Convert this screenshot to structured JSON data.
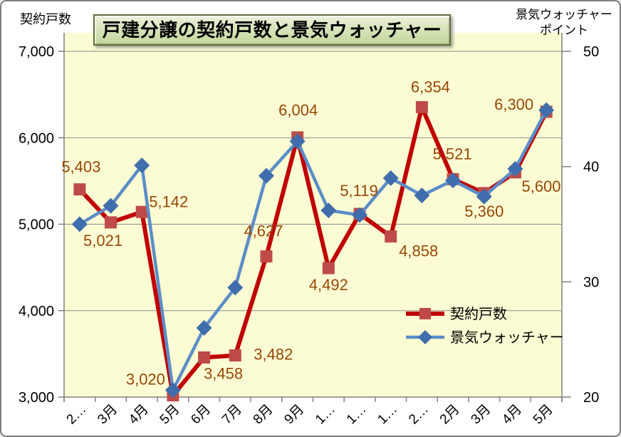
{
  "chart_data": {
    "type": "line",
    "title": "戸建分譲の契約戸数と景気ウォッチャー",
    "left_axis": {
      "title": "契約戸数",
      "min": 3000,
      "max": 7000,
      "tick_values": [
        7000,
        6000,
        5000,
        4000,
        3000
      ],
      "tick_labels": [
        "7,000",
        "6,000",
        "5,000",
        "4,000",
        "3,000"
      ]
    },
    "right_axis": {
      "title_lines": [
        "景気ウォッチャー",
        "ポイント"
      ],
      "min": 20,
      "max": 50,
      "tick_values": [
        50,
        40,
        30,
        20
      ],
      "tick_labels": [
        "50",
        "40",
        "30",
        "20"
      ]
    },
    "categories": [
      "2…",
      "3月",
      "4月",
      "5月",
      "6月",
      "7月",
      "8月",
      "9月",
      "1…",
      "1…",
      "1…",
      "2…",
      "2月",
      "3月",
      "4月",
      "5月"
    ],
    "series": [
      {
        "name": "契約戸数",
        "axis": "left",
        "line_color": "#C00000",
        "marker": "square",
        "marker_color": "#BE4B48",
        "values": [
          5403,
          5021,
          5142,
          3020,
          3458,
          3482,
          4627,
          6004,
          4492,
          5119,
          4858,
          6354,
          5521,
          5360,
          5600,
          6300
        ],
        "data_labels": [
          "5,403",
          "5,021",
          "5,142",
          "3,020",
          "3,458",
          "3,482",
          "4,627",
          "6,004",
          "4,492",
          "5,119",
          "4,858",
          "6,354",
          "5,521",
          "5,360",
          "5,600",
          "6,300"
        ],
        "label_color": "#974706"
      },
      {
        "name": "景気ウォッチャー",
        "axis": "right",
        "line_color": "#5B8DC8",
        "marker": "diamond",
        "marker_color": "#3F6DAD",
        "values": [
          35.0,
          36.6,
          40.1,
          20.6,
          26.0,
          29.5,
          39.2,
          42.2,
          36.2,
          35.8,
          39.0,
          37.5,
          38.8,
          37.4,
          39.8,
          44.9
        ],
        "data_labels": null
      }
    ],
    "legend": {
      "position": "inside-right",
      "entries": [
        "契約戸数",
        "景気ウォッチャー"
      ]
    },
    "grid": true,
    "colors": {
      "plot_bg": "#FCFCD4",
      "gridline": "#8a8a8a",
      "axis_line": "#808080",
      "tick_text": "#000000",
      "data_label_text": "#974706"
    }
  }
}
